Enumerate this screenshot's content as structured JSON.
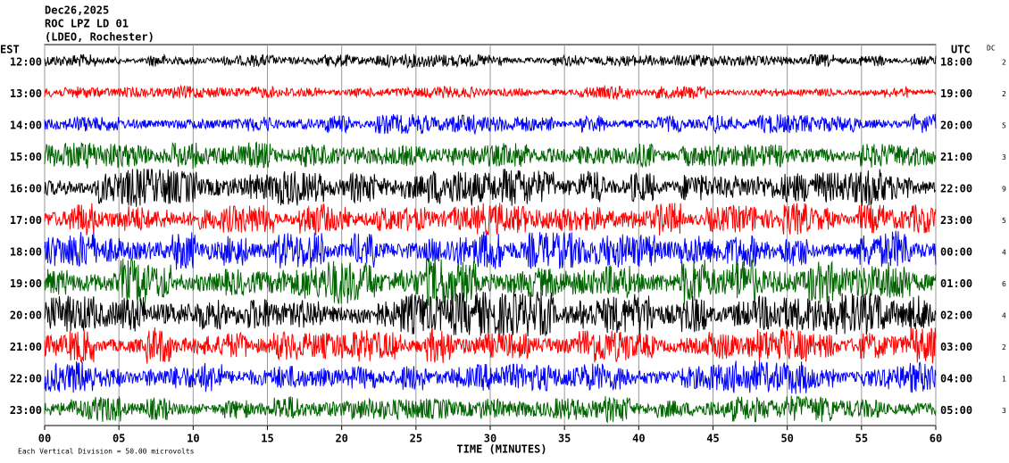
{
  "chart_data": {
    "type": "helicorder",
    "title_lines": [
      "Dec26,2025",
      "ROC LPZ LD 01",
      "(LDEO, Rochester)"
    ],
    "left_axis_title": "EST",
    "right_axis_title": "UTC",
    "dc_title": "DC",
    "xlabel": "TIME (MINUTES)",
    "footnote": "Each Vertical Division =   50.00 microvolts",
    "xlim": [
      0,
      60
    ],
    "xticks": [
      {
        "value": 0,
        "label": "00"
      },
      {
        "value": 5,
        "label": "05"
      },
      10,
      15,
      20,
      25,
      30,
      35,
      40,
      45,
      50,
      55,
      60
    ],
    "grid": true,
    "colors": [
      "#000000",
      "#ff0000",
      "#0000ff",
      "#006400"
    ],
    "left_labels": [
      "12:00",
      "13:00",
      "14:00",
      "15:00",
      "16:00",
      "17:00",
      "18:00",
      "19:00",
      "20:00",
      "21:00",
      "22:00",
      "23:00"
    ],
    "right_labels": [
      "18:00",
      "19:00",
      "20:00",
      "21:00",
      "22:00",
      "23:00",
      "00:00",
      "01:00",
      "02:00",
      "03:00",
      "04:00",
      "05:00"
    ],
    "dc": [
      2,
      2,
      5,
      3,
      9,
      5,
      4,
      6,
      4,
      2,
      1,
      3
    ]
  }
}
